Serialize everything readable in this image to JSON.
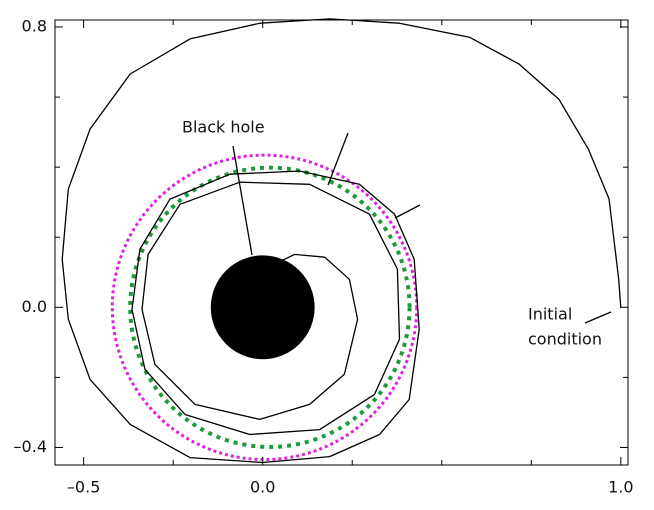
{
  "chart_data": {
    "type": "line",
    "xlim": [
      -0.58,
      1.02
    ],
    "ylim": [
      -0.45,
      0.82
    ],
    "xticks": [
      {
        "value": -0.5,
        "label": "–0.5"
      },
      {
        "value": 0,
        "label": "0.0"
      },
      {
        "value": 1,
        "label": "1.0"
      }
    ],
    "yticks": [
      {
        "value": 0.8,
        "label": "0.8"
      },
      {
        "value": 0,
        "label": "0.0"
      },
      {
        "value": -0.4,
        "label": "–0.4"
      }
    ],
    "xminor": [
      -0.25,
      0.25,
      0.5,
      0.75
    ],
    "yminor": [
      0.6,
      0.4,
      0.2,
      -0.2
    ],
    "series": [
      {
        "color": "#000000",
        "x": [
          1.0,
          0.994,
          0.967,
          0.91,
          0.827,
          0.716,
          0.577,
          0.382,
          0.187,
          -0.008,
          -0.203,
          -0.37,
          -0.482,
          -0.543,
          -0.56,
          -0.543,
          -0.482,
          -0.37,
          -0.203,
          0,
          0.187,
          0.326,
          0.409,
          0.437,
          0.423,
          0.368,
          0.27,
          0.103,
          -0.092,
          -0.259,
          -0.343,
          -0.365,
          -0.329,
          -0.217,
          -0.036,
          0.159,
          0.312,
          0.382,
          0.376,
          0.298,
          0.131,
          -0.064,
          -0.231,
          -0.32,
          -0.337,
          -0.301,
          -0.189,
          -0.008,
          0.131,
          0.228,
          0.265,
          0.242,
          0.173,
          0.089,
          0.033
        ],
        "values": [
          0.0,
          0.08,
          0.31,
          0.45,
          0.594,
          0.694,
          0.771,
          0.811,
          0.823,
          0.811,
          0.766,
          0.666,
          0.509,
          0.337,
          0.137,
          -0.034,
          -0.206,
          -0.334,
          -0.429,
          -0.443,
          -0.426,
          -0.363,
          -0.263,
          -0.063,
          0.137,
          0.266,
          0.351,
          0.389,
          0.38,
          0.309,
          0.166,
          -0.006,
          -0.177,
          -0.306,
          -0.363,
          -0.349,
          -0.249,
          -0.091,
          0.109,
          0.266,
          0.351,
          0.357,
          0.294,
          0.151,
          -0.006,
          -0.163,
          -0.277,
          -0.32,
          -0.277,
          -0.191,
          -0.034,
          0.08,
          0.143,
          0.151,
          0.123
        ]
      }
    ],
    "circles": [
      {
        "cx": 0.005,
        "cy": 0,
        "r": 0.425,
        "color": "#e020e0",
        "style": "dotted"
      },
      {
        "cx": 0.02,
        "cy": 0,
        "r": 0.39,
        "color": "#1f9a3a",
        "style": "dotted"
      },
      {
        "cx": 0,
        "cy": 0,
        "r": 0.145,
        "color": "#000000",
        "style": "filled"
      }
    ],
    "annotations": [
      [
        "Black hole"
      ],
      [
        "Initial",
        "condition"
      ]
    ]
  }
}
